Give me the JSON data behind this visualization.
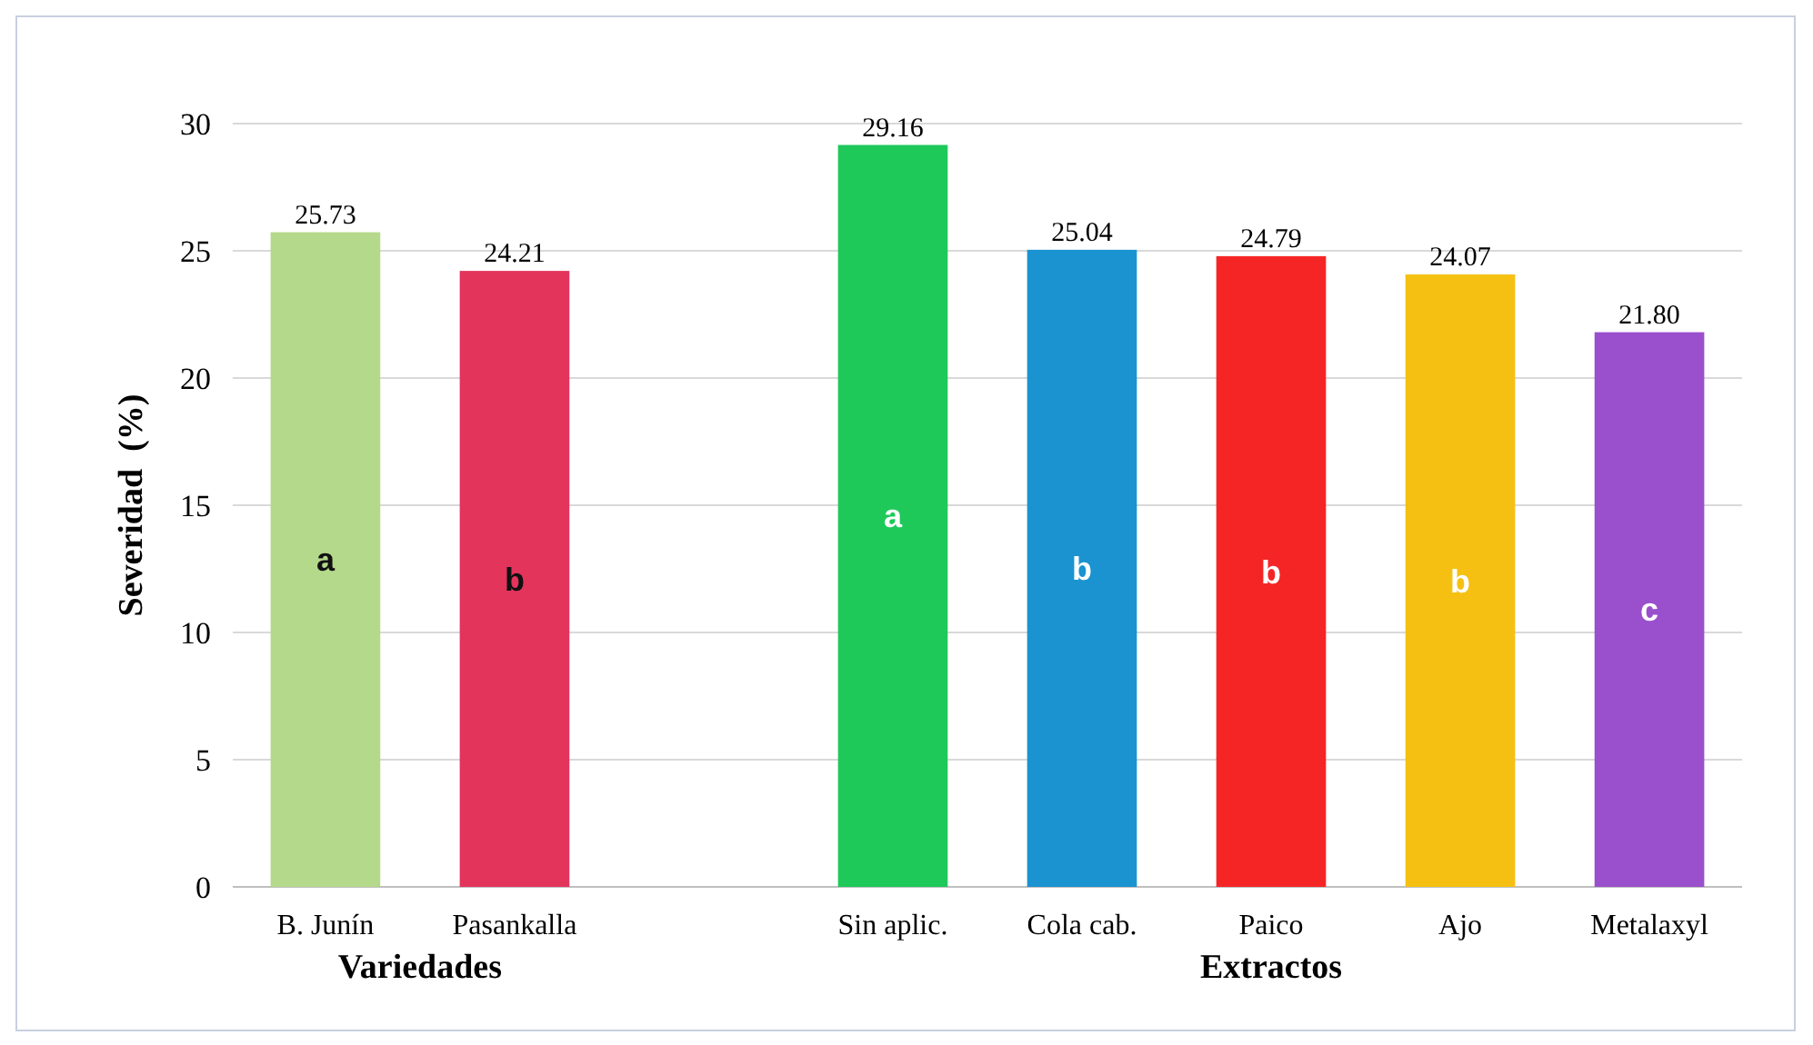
{
  "chart_data": {
    "type": "bar",
    "ylabel": "Severidad  (%)",
    "categories": [
      "B. Junín",
      "Pasankalla",
      null,
      "Sin aplic.",
      "Cola cab.",
      "Paico",
      "Ajo",
      "Metalaxyl"
    ],
    "values": [
      25.73,
      24.21,
      null,
      29.16,
      25.04,
      24.79,
      24.07,
      21.8
    ],
    "value_labels": [
      "25.73",
      "24.21",
      null,
      "29.16",
      "25.04",
      "24.79",
      "24.07",
      "21.80"
    ],
    "colors": [
      "#b5d98a",
      "#e3345c",
      null,
      "#1ec95a",
      "#1a93d0",
      "#f52525",
      "#f5c012",
      "#9a4fcc"
    ],
    "ylim": [
      0,
      30
    ],
    "yticks": [
      0,
      5,
      10,
      15,
      20,
      25,
      30
    ],
    "grid": "y",
    "annotations": [
      "Variedades",
      "Extractos",
      "a",
      "b",
      "a",
      "b",
      "b",
      "b",
      "c"
    ]
  }
}
